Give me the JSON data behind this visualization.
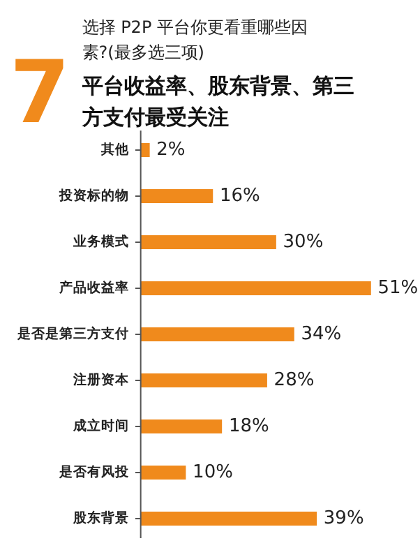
{
  "chart_data": {
    "type": "bar",
    "orientation": "horizontal",
    "title": "选择 P2P 平台你更看重哪些因素?(最多选三项)",
    "subtitle": "平台收益率、股东背景、第三方支付最受关注",
    "annotations": [
      "7"
    ],
    "categories": [
      "其他",
      "投资标的物",
      "业务模式",
      "产品收益率",
      "是否是第三方支付",
      "注册资本",
      "成立时间",
      "是否有风投",
      "股东背景"
    ],
    "values": [
      2,
      16,
      30,
      51,
      34,
      28,
      18,
      10,
      39
    ],
    "value_labels": [
      "2%",
      "16%",
      "30%",
      "51%",
      "34%",
      "28%",
      "18%",
      "10%",
      "39%"
    ],
    "color": "#f08a1c",
    "grid": false
  }
}
